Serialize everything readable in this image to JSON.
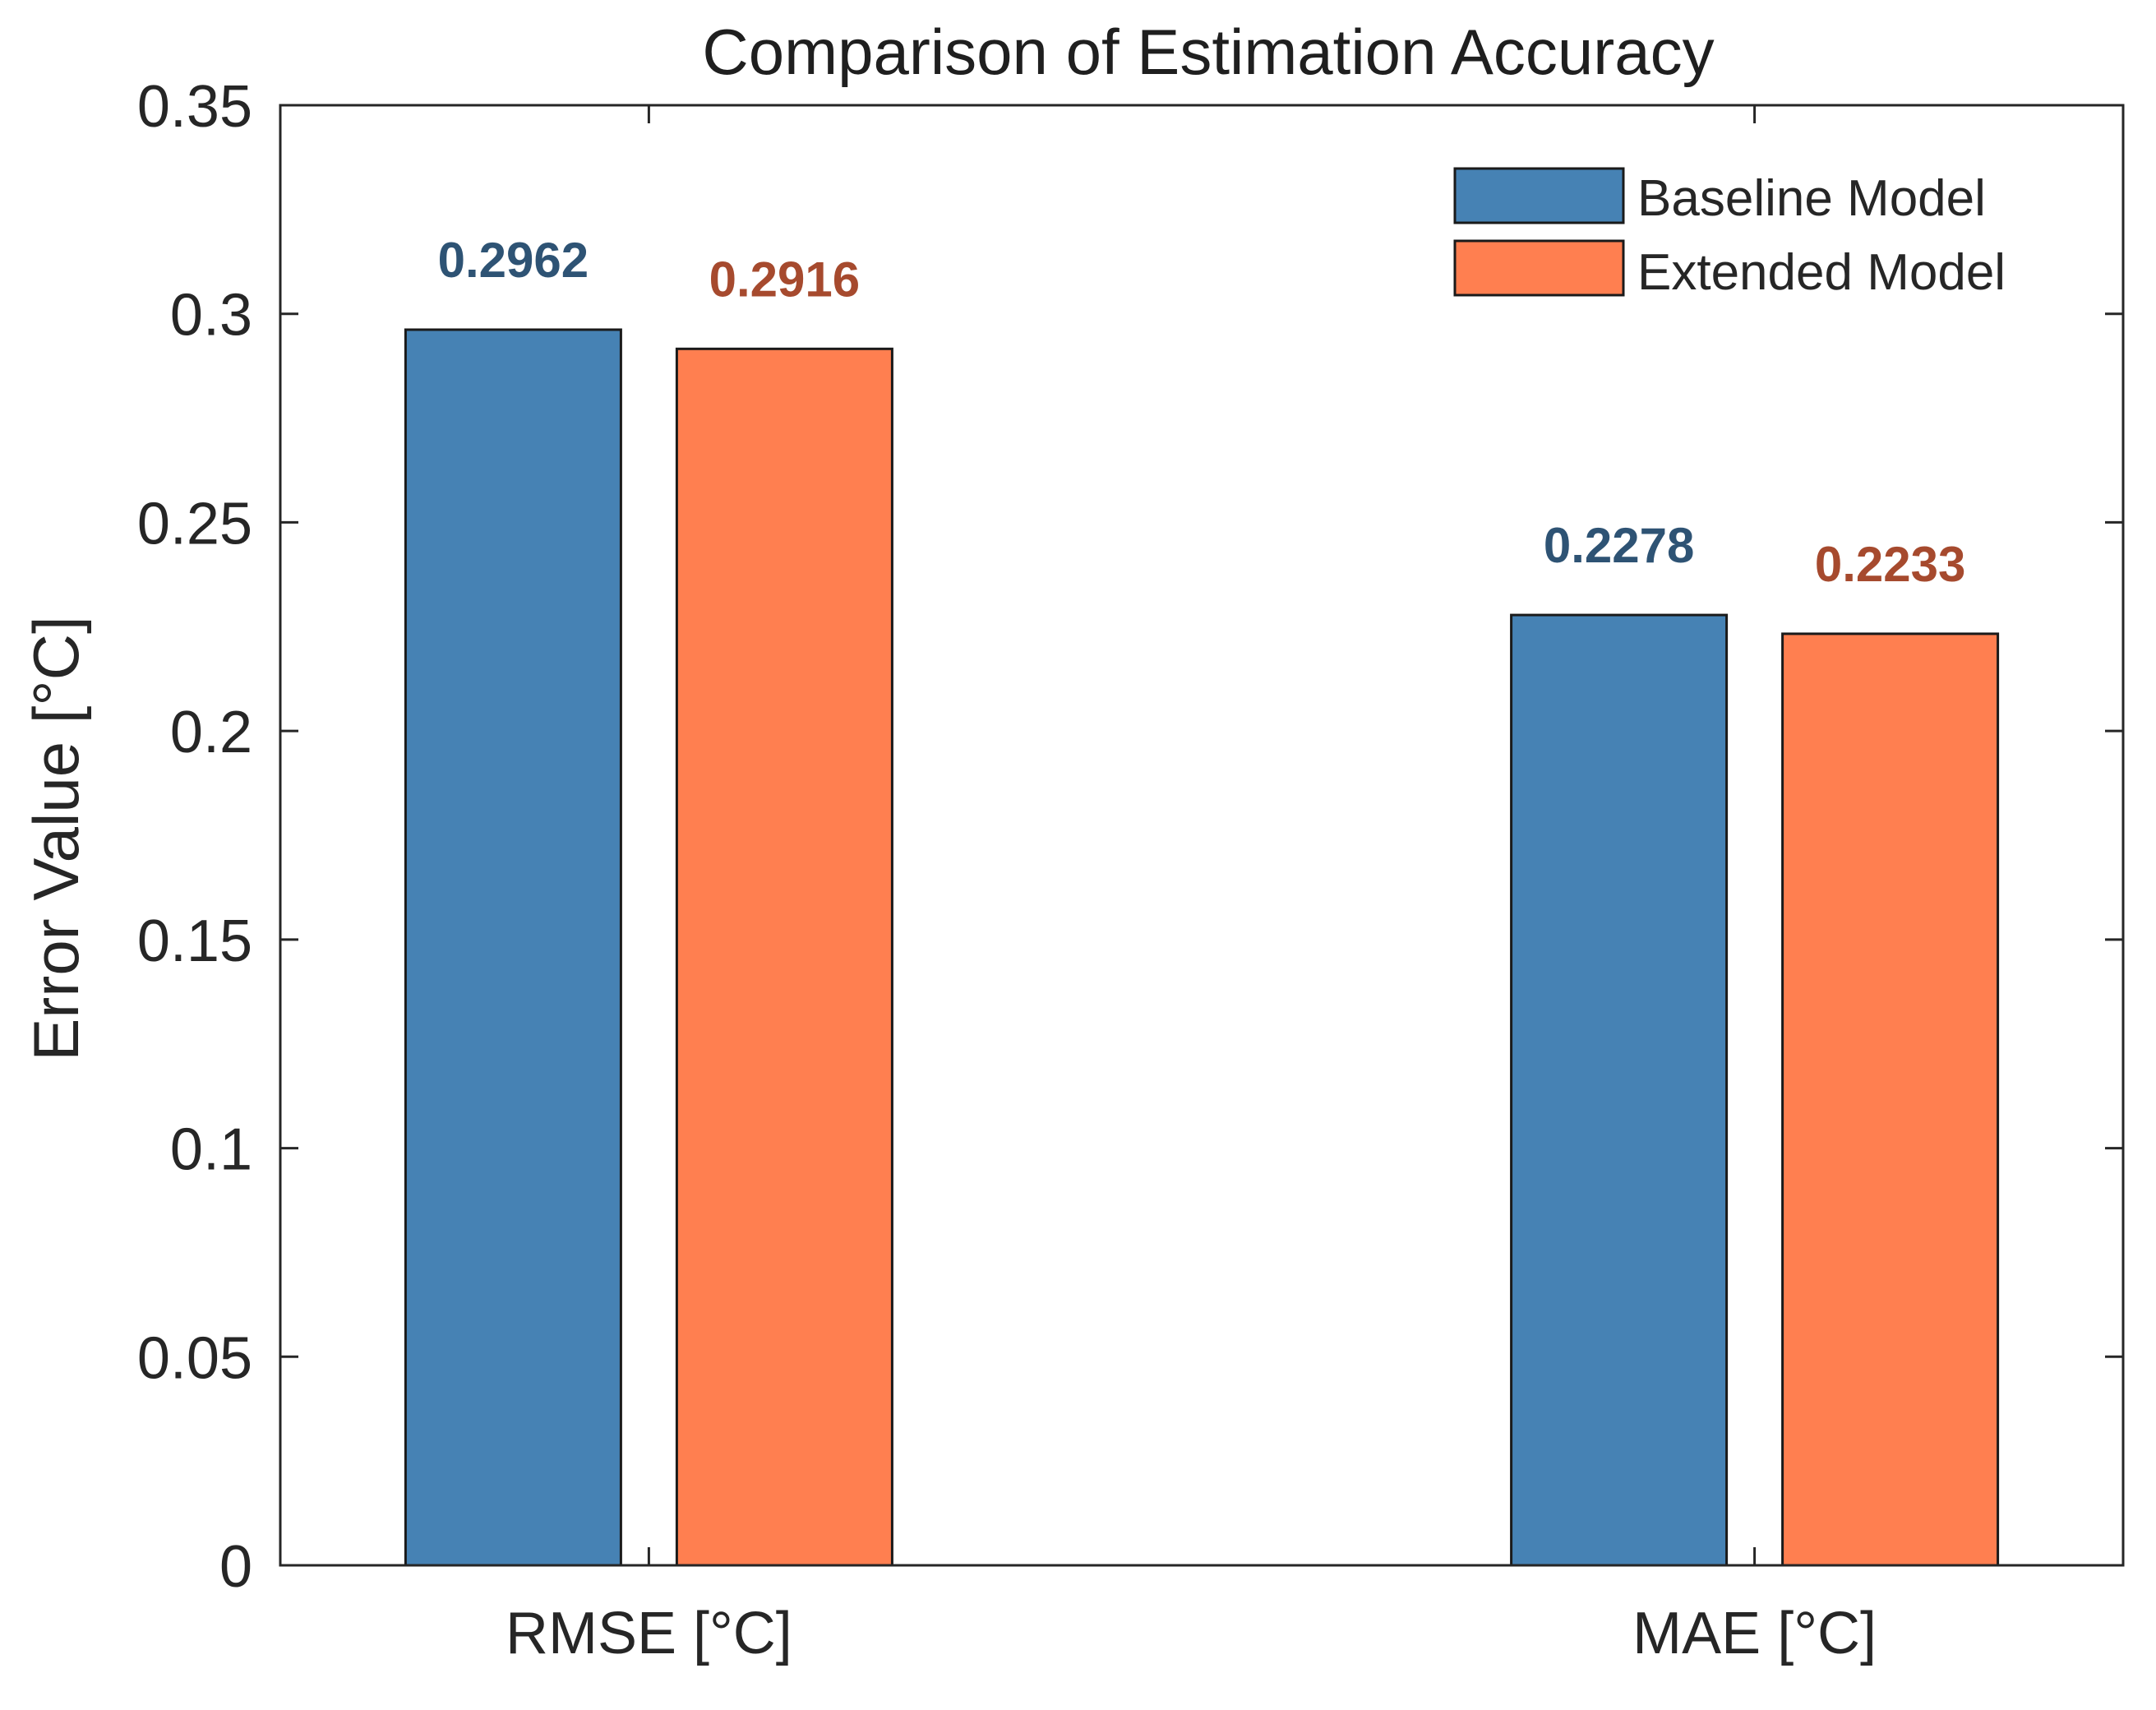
{
  "chart_data": {
    "type": "bar",
    "title": "Comparison of Estimation Accuracy",
    "xlabel": "",
    "ylabel": "Error Value [°C]",
    "ylim": [
      0,
      0.35
    ],
    "yticks": [
      0,
      0.05,
      0.1,
      0.15,
      0.2,
      0.25,
      0.3,
      0.35
    ],
    "ytick_labels": [
      "0",
      "0.05",
      "0.1",
      "0.15",
      "0.2",
      "0.25",
      "0.3",
      "0.35"
    ],
    "categories": [
      "RMSE [°C]",
      "MAE [°C]"
    ],
    "series": [
      {
        "name": "Baseline Model",
        "values": [
          0.2962,
          0.2278
        ],
        "labels": [
          "0.2962",
          "0.2278"
        ],
        "color": "#4682B4",
        "label_color": "#2E5374"
      },
      {
        "name": "Extended Model",
        "values": [
          0.2916,
          0.2233
        ],
        "labels": [
          "0.2916",
          "0.2233"
        ],
        "color": "#FF7F50",
        "label_color": "#A64A2E"
      }
    ],
    "legend": "top-right",
    "grid": false
  }
}
